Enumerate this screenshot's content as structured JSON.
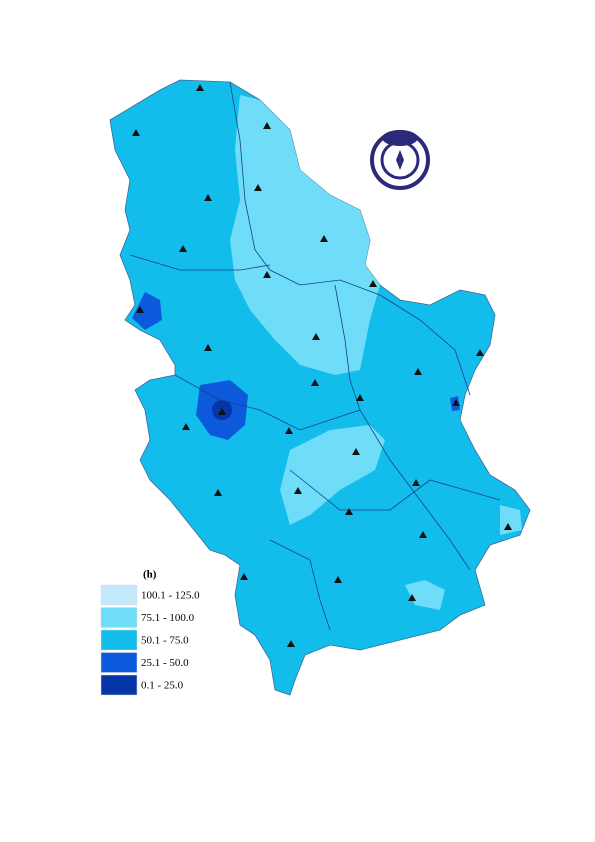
{
  "legend": {
    "title": "(h)",
    "items": [
      {
        "label": "100.1 - 125.0",
        "color": "#c4e9fb"
      },
      {
        "label": "75.1 - 100.0",
        "color": "#6fdcf8"
      },
      {
        "label": "50.1 - 75.0",
        "color": "#12bdec"
      },
      {
        "label": "25.1 - 50.0",
        "color": "#0c59dc"
      },
      {
        "label": "0.1 - 25.0",
        "color": "#0635a8"
      }
    ]
  }
}
